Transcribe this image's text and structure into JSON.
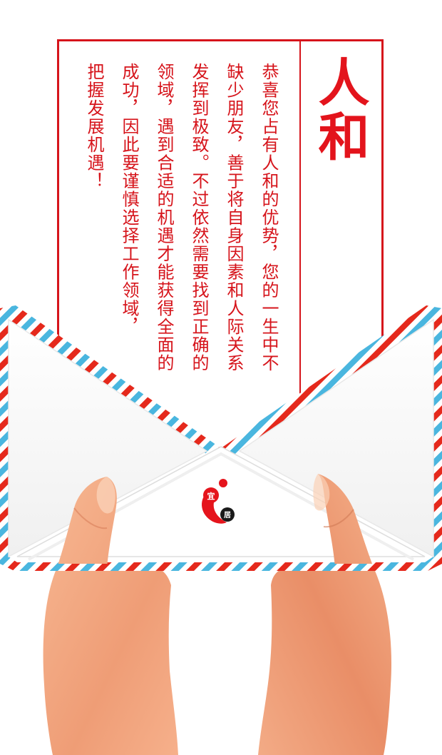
{
  "letter": {
    "title": "人和",
    "lines": [
      "恭喜您占有人和的优势，您的一生中不",
      "缺少朋友，善于将自身因素和人际关系",
      "发挥到极致。不过依然需要找到正确的",
      "领域，遇到合适的机遇才能获得全面的",
      "成功，因此要谨慎选择工作领域，",
      "把握发展机遇！"
    ]
  },
  "seal": {
    "char_top": "宜",
    "char_bottom": "居"
  },
  "colors": {
    "accent_red": "#d6141b",
    "airmail_blue": "#4ab6df",
    "skin": "#f0a47c"
  },
  "icons": {
    "seal": "red-drop-logo",
    "hands": "hands-holding-envelope"
  }
}
